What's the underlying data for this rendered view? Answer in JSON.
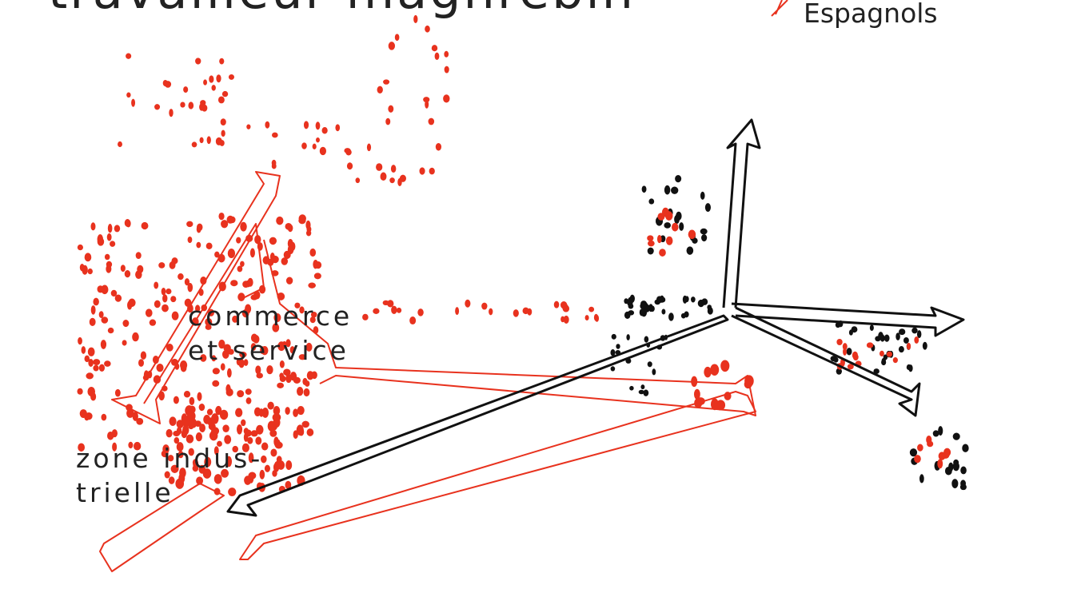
{
  "title": "travailleur maghrébin",
  "labels": {
    "espagnols": "Espagnols",
    "commerce": [
      "commerce",
      "et service"
    ],
    "industrie": [
      "zone indus-",
      "trielle"
    ]
  }
}
